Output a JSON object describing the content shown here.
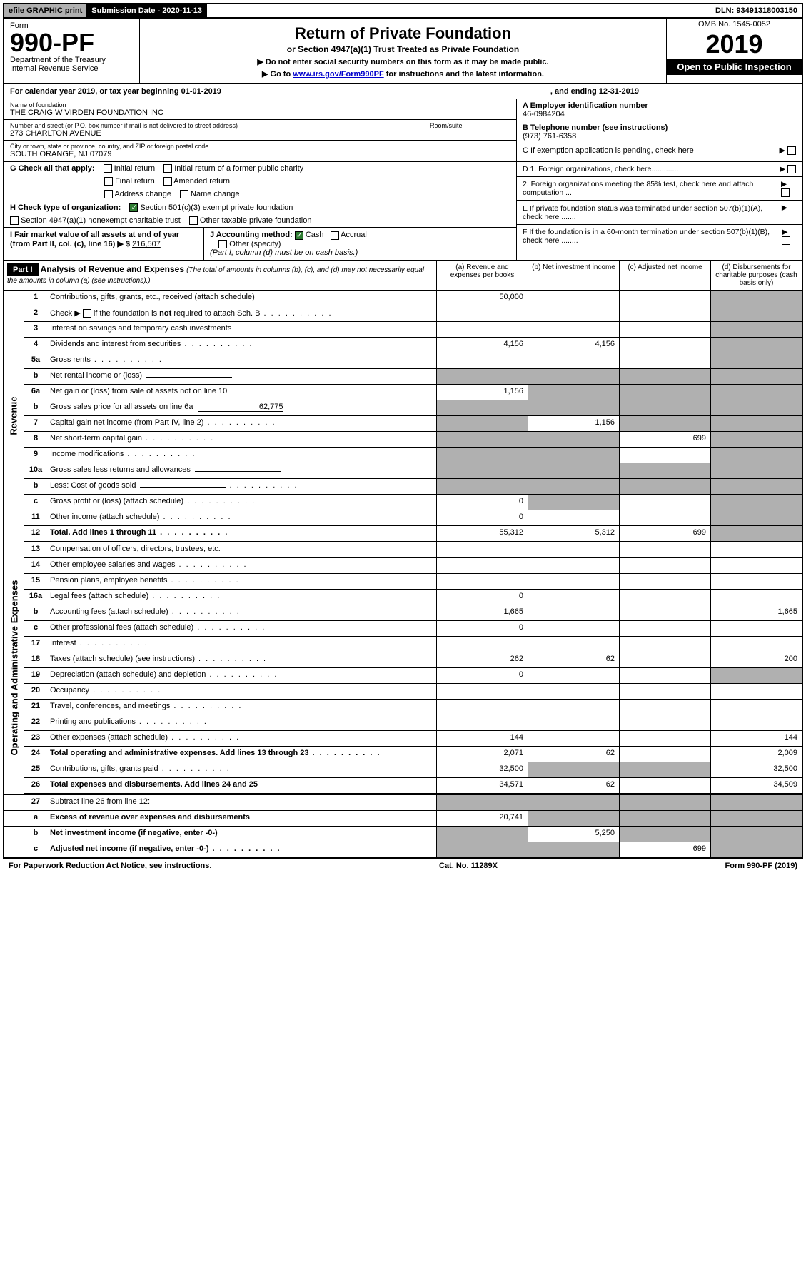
{
  "topbar": {
    "efile": "efile GRAPHIC print",
    "subdate": "Submission Date - 2020-11-13",
    "dln": "DLN: 93491318003150"
  },
  "header": {
    "form_label": "Form",
    "form_number": "990-PF",
    "dept1": "Department of the Treasury",
    "dept2": "Internal Revenue Service",
    "title": "Return of Private Foundation",
    "subtitle": "or Section 4947(a)(1) Trust Treated as Private Foundation",
    "instr1": "▶ Do not enter social security numbers on this form as it may be made public.",
    "instr2_pre": "▶ Go to ",
    "instr2_link": "www.irs.gov/Form990PF",
    "instr2_post": " for instructions and the latest information.",
    "omb": "OMB No. 1545-0052",
    "year": "2019",
    "open": "Open to Public Inspection"
  },
  "calyear": {
    "text": "For calendar year 2019, or tax year beginning 01-01-2019",
    "ending": ", and ending 12-31-2019"
  },
  "entity": {
    "name_label": "Name of foundation",
    "name": "THE CRAIG W VIRDEN FOUNDATION INC",
    "addr_label": "Number and street (or P.O. box number if mail is not delivered to street address)",
    "addr": "273 CHARLTON AVENUE",
    "room_label": "Room/suite",
    "city_label": "City or town, state or province, country, and ZIP or foreign postal code",
    "city": "SOUTH ORANGE, NJ  07079",
    "ein_label": "A Employer identification number",
    "ein": "46-0984204",
    "tel_label": "B Telephone number (see instructions)",
    "tel": "(973) 761-6358",
    "c_label": "C  If exemption application is pending, check here"
  },
  "checks": {
    "g_label": "G Check all that apply:",
    "initial": "Initial return",
    "initial_former": "Initial return of a former public charity",
    "final": "Final return",
    "amended": "Amended return",
    "addr_change": "Address change",
    "name_change": "Name change",
    "h_label": "H Check type of organization:",
    "h1": "Section 501(c)(3) exempt private foundation",
    "h2": "Section 4947(a)(1) nonexempt charitable trust",
    "h3": "Other taxable private foundation",
    "i_label": "I Fair market value of all assets at end of year (from Part II, col. (c), line 16) ▶ $",
    "i_val": "216,507",
    "j_label": "J Accounting method:",
    "j_cash": "Cash",
    "j_accrual": "Accrual",
    "j_other": "Other (specify)",
    "j_note": "(Part I, column (d) must be on cash basis.)",
    "d1": "D 1. Foreign organizations, check here.............",
    "d2": "2. Foreign organizations meeting the 85% test, check here and attach computation ...",
    "e": "E  If private foundation status was terminated under section 507(b)(1)(A), check here .......",
    "f": "F  If the foundation is in a 60-month termination under section 507(b)(1)(B), check here ........"
  },
  "part1": {
    "label": "Part I",
    "title": "Analysis of Revenue and Expenses",
    "note": "(The total of amounts in columns (b), (c), and (d) may not necessarily equal the amounts in column (a) (see instructions).)",
    "cols": {
      "a": "(a) Revenue and expenses per books",
      "b": "(b) Net investment income",
      "c": "(c) Adjusted net income",
      "d": "(d) Disbursements for charitable purposes (cash basis only)"
    }
  },
  "sections": {
    "revenue": "Revenue",
    "expenses": "Operating and Administrative Expenses"
  },
  "rows": [
    {
      "n": "1",
      "d": "Contributions, gifts, grants, etc., received (attach schedule)",
      "a": "50,000",
      "b": "",
      "c": "",
      "d_shade": true
    },
    {
      "n": "2",
      "d": "Check ▶ ☐ if the foundation is not required to attach Sch. B",
      "a": "",
      "b": "",
      "c": "",
      "d_shade": true,
      "dots": true,
      "html": true
    },
    {
      "n": "3",
      "d": "Interest on savings and temporary cash investments",
      "a": "",
      "b": "",
      "c": "",
      "d_shade": true
    },
    {
      "n": "4",
      "d": "Dividends and interest from securities",
      "a": "4,156",
      "b": "4,156",
      "c": "",
      "d_shade": true,
      "dots": true
    },
    {
      "n": "5a",
      "d": "Gross rents",
      "a": "",
      "b": "",
      "c": "",
      "d_shade": true,
      "dots": true
    },
    {
      "n": "b",
      "d": "Net rental income or (loss)",
      "a_shade": true,
      "b_shade": true,
      "c_shade": true,
      "d_shade": true,
      "inline": true
    },
    {
      "n": "6a",
      "d": "Net gain or (loss) from sale of assets not on line 10",
      "a": "1,156",
      "b_shade": true,
      "c_shade": true,
      "d_shade": true
    },
    {
      "n": "b",
      "d": "Gross sales price for all assets on line 6a",
      "a_shade": true,
      "b_shade": true,
      "c_shade": true,
      "d_shade": true,
      "inline": true,
      "inline_val": "62,775"
    },
    {
      "n": "7",
      "d": "Capital gain net income (from Part IV, line 2)",
      "a_shade": true,
      "b": "1,156",
      "c_shade": true,
      "d_shade": true,
      "dots": true
    },
    {
      "n": "8",
      "d": "Net short-term capital gain",
      "a_shade": true,
      "b_shade": true,
      "c": "699",
      "d_shade": true,
      "dots": true
    },
    {
      "n": "9",
      "d": "Income modifications",
      "a_shade": true,
      "b_shade": true,
      "c": "",
      "d_shade": true,
      "dots": true
    },
    {
      "n": "10a",
      "d": "Gross sales less returns and allowances",
      "a_shade": true,
      "b_shade": true,
      "c_shade": true,
      "d_shade": true,
      "inline": true
    },
    {
      "n": "b",
      "d": "Less: Cost of goods sold",
      "a_shade": true,
      "b_shade": true,
      "c_shade": true,
      "d_shade": true,
      "dots": true,
      "inline": true
    },
    {
      "n": "c",
      "d": "Gross profit or (loss) (attach schedule)",
      "a": "0",
      "b_shade": true,
      "c": "",
      "d_shade": true,
      "dots": true
    },
    {
      "n": "11",
      "d": "Other income (attach schedule)",
      "a": "0",
      "b": "",
      "c": "",
      "d_shade": true,
      "dots": true
    },
    {
      "n": "12",
      "d": "Total. Add lines 1 through 11",
      "a": "55,312",
      "b": "5,312",
      "c": "699",
      "d_shade": true,
      "bold": true,
      "dots": true
    }
  ],
  "exp_rows": [
    {
      "n": "13",
      "d": "Compensation of officers, directors, trustees, etc.",
      "a": "",
      "b": "",
      "c": "",
      "dd": ""
    },
    {
      "n": "14",
      "d": "Other employee salaries and wages",
      "a": "",
      "b": "",
      "c": "",
      "dd": "",
      "dots": true
    },
    {
      "n": "15",
      "d": "Pension plans, employee benefits",
      "a": "",
      "b": "",
      "c": "",
      "dd": "",
      "dots": true
    },
    {
      "n": "16a",
      "d": "Legal fees (attach schedule)",
      "a": "0",
      "b": "",
      "c": "",
      "dd": "",
      "dots": true
    },
    {
      "n": "b",
      "d": "Accounting fees (attach schedule)",
      "a": "1,665",
      "b": "",
      "c": "",
      "dd": "1,665",
      "dots": true
    },
    {
      "n": "c",
      "d": "Other professional fees (attach schedule)",
      "a": "0",
      "b": "",
      "c": "",
      "dd": "",
      "dots": true
    },
    {
      "n": "17",
      "d": "Interest",
      "a": "",
      "b": "",
      "c": "",
      "dd": "",
      "dots": true
    },
    {
      "n": "18",
      "d": "Taxes (attach schedule) (see instructions)",
      "a": "262",
      "b": "62",
      "c": "",
      "dd": "200",
      "dots": true
    },
    {
      "n": "19",
      "d": "Depreciation (attach schedule) and depletion",
      "a": "0",
      "b": "",
      "c": "",
      "dd": "",
      "d_shade": true,
      "dots": true
    },
    {
      "n": "20",
      "d": "Occupancy",
      "a": "",
      "b": "",
      "c": "",
      "dd": "",
      "dots": true
    },
    {
      "n": "21",
      "d": "Travel, conferences, and meetings",
      "a": "",
      "b": "",
      "c": "",
      "dd": "",
      "dots": true
    },
    {
      "n": "22",
      "d": "Printing and publications",
      "a": "",
      "b": "",
      "c": "",
      "dd": "",
      "dots": true
    },
    {
      "n": "23",
      "d": "Other expenses (attach schedule)",
      "a": "144",
      "b": "",
      "c": "",
      "dd": "144",
      "dots": true
    },
    {
      "n": "24",
      "d": "Total operating and administrative expenses. Add lines 13 through 23",
      "a": "2,071",
      "b": "62",
      "c": "",
      "dd": "2,009",
      "bold": true,
      "dots": true
    },
    {
      "n": "25",
      "d": "Contributions, gifts, grants paid",
      "a": "32,500",
      "b_shade": true,
      "c_shade": true,
      "dd": "32,500",
      "dots": true
    },
    {
      "n": "26",
      "d": "Total expenses and disbursements. Add lines 24 and 25",
      "a": "34,571",
      "b": "62",
      "c": "",
      "dd": "34,509",
      "bold": true
    }
  ],
  "bottom_rows": [
    {
      "n": "27",
      "d": "Subtract line 26 from line 12:",
      "a_shade": true,
      "b_shade": true,
      "c_shade": true,
      "d_shade": true
    },
    {
      "n": "a",
      "d": "Excess of revenue over expenses and disbursements",
      "a": "20,741",
      "b_shade": true,
      "c_shade": true,
      "d_shade": true,
      "bold": true
    },
    {
      "n": "b",
      "d": "Net investment income (if negative, enter -0-)",
      "a_shade": true,
      "b": "5,250",
      "c_shade": true,
      "d_shade": true,
      "bold": true
    },
    {
      "n": "c",
      "d": "Adjusted net income (if negative, enter -0-)",
      "a_shade": true,
      "b_shade": true,
      "c": "699",
      "d_shade": true,
      "bold": true,
      "dots": true
    }
  ],
  "footer": {
    "left": "For Paperwork Reduction Act Notice, see instructions.",
    "mid": "Cat. No. 11289X",
    "right": "Form 990-PF (2019)"
  }
}
